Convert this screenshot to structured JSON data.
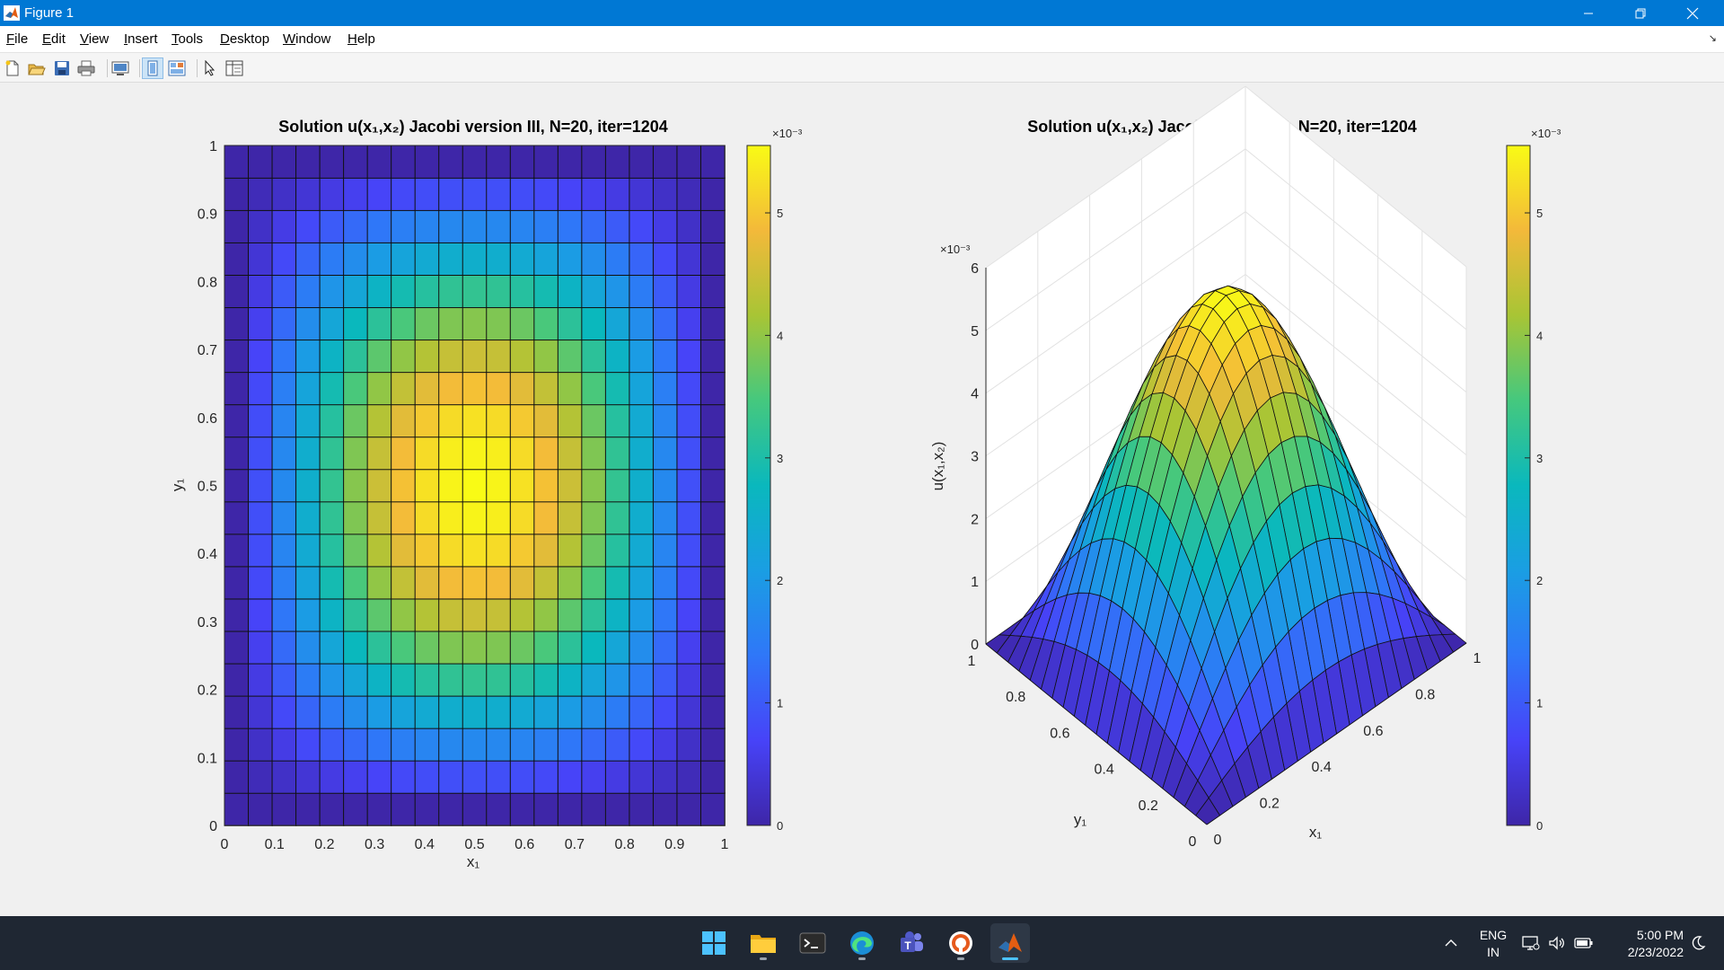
{
  "window": {
    "title": "Figure 1",
    "app_icon": "matlab-icon",
    "controls": [
      "minimize-icon",
      "restore-icon",
      "close-icon"
    ]
  },
  "menu": {
    "items": [
      {
        "pre": "",
        "key": "F",
        "post": "ile"
      },
      {
        "pre": "",
        "key": "E",
        "post": "dit"
      },
      {
        "pre": "",
        "key": "V",
        "post": "iew"
      },
      {
        "pre": "",
        "key": "I",
        "post": "nsert"
      },
      {
        "pre": "",
        "key": "T",
        "post": "ools"
      },
      {
        "pre": "",
        "key": "D",
        "post": "esktop"
      },
      {
        "pre": "",
        "key": "W",
        "post": "indow"
      },
      {
        "pre": "",
        "key": "H",
        "post": "elp"
      }
    ],
    "dock_icon": "dock-arrow-icon"
  },
  "toolbar": {
    "tools": [
      "new-figure-icon",
      "open-file-icon",
      "save-figure-icon",
      "print-figure-icon",
      "link-plot-icon",
      "hide-plot-tools-icon",
      "show-plot-tools-icon",
      "edit-plot-icon",
      "open-property-inspector-icon"
    ]
  },
  "taskbar": {
    "apps": [
      "windows-start-icon",
      "file-explorer-icon",
      "terminal-icon",
      "edge-icon",
      "teams-icon",
      "onlyoffice-icon",
      "matlab-icon"
    ],
    "tray_icons": [
      "chevron-up-icon",
      "network-icon",
      "volume-icon",
      "battery-icon"
    ],
    "language": [
      "ENG",
      "IN"
    ],
    "time": "5:00 PM",
    "date": "2/23/2022",
    "quiet-hours": "moon-icon"
  },
  "chart_data": [
    {
      "type": "heatmap",
      "title": "Solution u(x₁,x₂) Jacobi version III, N=20, iter=1204",
      "xlabel": "x₁",
      "ylabel": "y₁",
      "xlim": [
        0,
        1
      ],
      "ylim": [
        0,
        1
      ],
      "xticks": [
        "0",
        "0.1",
        "0.2",
        "0.3",
        "0.4",
        "0.5",
        "0.6",
        "0.7",
        "0.8",
        "0.9",
        "1"
      ],
      "yticks": [
        "0",
        "0.1",
        "0.2",
        "0.3",
        "0.4",
        "0.5",
        "0.6",
        "0.7",
        "0.8",
        "0.9",
        "1"
      ],
      "grid_size": 21,
      "max_value": 0.00555,
      "function": "u_max * sin(pi*x) * sin(pi*y)",
      "colormap": "parula",
      "colorbar": {
        "ticks": [
          "0",
          "1",
          "2",
          "3",
          "4",
          "5"
        ],
        "exponent": "×10⁻³",
        "range": [
          0,
          0.00555
        ]
      }
    },
    {
      "type": "surface",
      "title": "Solution u(x₁,x₂) Jacobi version III, N=20, iter=1204",
      "xlabel": "x₁",
      "ylabel": "y₁",
      "zlabel": "u(x₁,x₂)",
      "xticks": [
        "0",
        "0.2",
        "0.4",
        "0.6",
        "0.8",
        "1"
      ],
      "yticks": [
        "0",
        "0.2",
        "0.4",
        "0.6",
        "0.8",
        "1"
      ],
      "zticks": [
        "0",
        "1",
        "2",
        "3",
        "4",
        "5",
        "6"
      ],
      "zexponent": "×10⁻³",
      "zlim": [
        0,
        0.006
      ],
      "grid_size": 21,
      "max_value": 0.00555,
      "colormap": "parula",
      "colorbar": {
        "ticks": [
          "0",
          "1",
          "2",
          "3",
          "4",
          "5"
        ],
        "exponent": "×10⁻³",
        "range": [
          0,
          0.00555
        ]
      }
    }
  ]
}
